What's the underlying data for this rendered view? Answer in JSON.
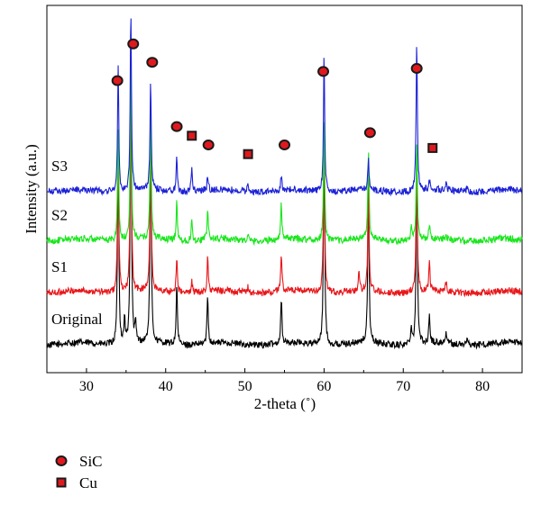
{
  "chart_data": {
    "type": "line",
    "xlabel": "2-theta (˚)",
    "ylabel": "Intensity (a.u.)",
    "xlim": [
      25,
      85
    ],
    "xticks": [
      30,
      40,
      50,
      60,
      70,
      80
    ],
    "yticks_shown": false,
    "grid": false,
    "series": [
      {
        "name": "Original",
        "color": "#000000",
        "baseline": 0,
        "peaks": [
          {
            "x": 34.0,
            "h": 7.0
          },
          {
            "x": 34.8,
            "h": 0.8
          },
          {
            "x": 35.6,
            "h": 9.3
          },
          {
            "x": 36.2,
            "h": 0.6
          },
          {
            "x": 38.1,
            "h": 7.6
          },
          {
            "x": 41.4,
            "h": 2.0
          },
          {
            "x": 45.3,
            "h": 1.6
          },
          {
            "x": 54.6,
            "h": 1.5
          },
          {
            "x": 60.0,
            "h": 7.3
          },
          {
            "x": 65.6,
            "h": 5.7
          },
          {
            "x": 71.0,
            "h": 0.6
          },
          {
            "x": 71.7,
            "h": 6.5
          },
          {
            "x": 73.3,
            "h": 0.9
          },
          {
            "x": 75.4,
            "h": 0.4
          },
          {
            "x": 78.1,
            "h": 0.3
          }
        ]
      },
      {
        "name": "S1",
        "color": "#e8171b",
        "baseline": 1.7,
        "peaks": [
          {
            "x": 34.0,
            "h": 5.3
          },
          {
            "x": 35.6,
            "h": 7.6
          },
          {
            "x": 38.1,
            "h": 5.9
          },
          {
            "x": 41.4,
            "h": 1.2
          },
          {
            "x": 43.3,
            "h": 0.4
          },
          {
            "x": 45.3,
            "h": 1.1
          },
          {
            "x": 50.4,
            "h": 0.2
          },
          {
            "x": 54.6,
            "h": 1.3
          },
          {
            "x": 60.0,
            "h": 5.6
          },
          {
            "x": 64.4,
            "h": 0.6
          },
          {
            "x": 65.6,
            "h": 3.8
          },
          {
            "x": 71.7,
            "h": 4.8
          },
          {
            "x": 73.3,
            "h": 1.0
          },
          {
            "x": 75.4,
            "h": 0.3
          }
        ]
      },
      {
        "name": "S2",
        "color": "#19e61c",
        "baseline": 3.4,
        "peaks": [
          {
            "x": 34.0,
            "h": 3.7
          },
          {
            "x": 35.6,
            "h": 6.0
          },
          {
            "x": 38.1,
            "h": 4.3
          },
          {
            "x": 41.4,
            "h": 1.3
          },
          {
            "x": 43.3,
            "h": 0.7
          },
          {
            "x": 45.3,
            "h": 1.0
          },
          {
            "x": 50.4,
            "h": 0.15
          },
          {
            "x": 54.6,
            "h": 1.2
          },
          {
            "x": 60.0,
            "h": 4.0
          },
          {
            "x": 65.6,
            "h": 3.0
          },
          {
            "x": 71.0,
            "h": 0.4
          },
          {
            "x": 71.7,
            "h": 3.3
          },
          {
            "x": 73.3,
            "h": 0.5
          },
          {
            "x": 75.4,
            "h": 0.2
          }
        ]
      },
      {
        "name": "S3",
        "color": "#1c22d6",
        "baseline": 5.0,
        "peaks": [
          {
            "x": 34.0,
            "h": 4.1
          },
          {
            "x": 35.6,
            "h": 6.0
          },
          {
            "x": 38.1,
            "h": 3.6
          },
          {
            "x": 41.4,
            "h": 1.2
          },
          {
            "x": 43.3,
            "h": 0.9
          },
          {
            "x": 45.3,
            "h": 0.5
          },
          {
            "x": 50.4,
            "h": 0.25
          },
          {
            "x": 54.6,
            "h": 0.5
          },
          {
            "x": 60.0,
            "h": 4.5
          },
          {
            "x": 65.6,
            "h": 1.0
          },
          {
            "x": 71.7,
            "h": 5.0
          },
          {
            "x": 73.3,
            "h": 0.3
          },
          {
            "x": 75.4,
            "h": 0.3
          },
          {
            "x": 78.1,
            "h": 0.25
          }
        ]
      }
    ],
    "markers": [
      {
        "phase": "SiC",
        "shape": "circle",
        "x": 33.9,
        "y": 8.6
      },
      {
        "phase": "SiC",
        "shape": "circle",
        "x": 35.9,
        "y": 9.8
      },
      {
        "phase": "SiC",
        "shape": "circle",
        "x": 38.3,
        "y": 9.2
      },
      {
        "phase": "SiC",
        "shape": "circle",
        "x": 41.4,
        "y": 7.1
      },
      {
        "phase": "Cu",
        "shape": "square",
        "x": 43.3,
        "y": 6.8
      },
      {
        "phase": "SiC",
        "shape": "circle",
        "x": 45.4,
        "y": 6.5
      },
      {
        "phase": "Cu",
        "shape": "square",
        "x": 50.4,
        "y": 6.2
      },
      {
        "phase": "SiC",
        "shape": "circle",
        "x": 55.0,
        "y": 6.5
      },
      {
        "phase": "SiC",
        "shape": "circle",
        "x": 59.9,
        "y": 8.9
      },
      {
        "phase": "SiC",
        "shape": "circle",
        "x": 65.8,
        "y": 6.9
      },
      {
        "phase": "SiC",
        "shape": "circle",
        "x": 71.7,
        "y": 9.0
      },
      {
        "phase": "Cu",
        "shape": "square",
        "x": 73.7,
        "y": 6.4
      }
    ],
    "legend": {
      "placement": "bottom-left",
      "entries": [
        {
          "label": "SiC",
          "shape": "circle"
        },
        {
          "label": "Cu",
          "shape": "square"
        }
      ]
    },
    "marker_colors": {
      "fill": "#e0191e",
      "outline": "#1a1a1a"
    }
  }
}
